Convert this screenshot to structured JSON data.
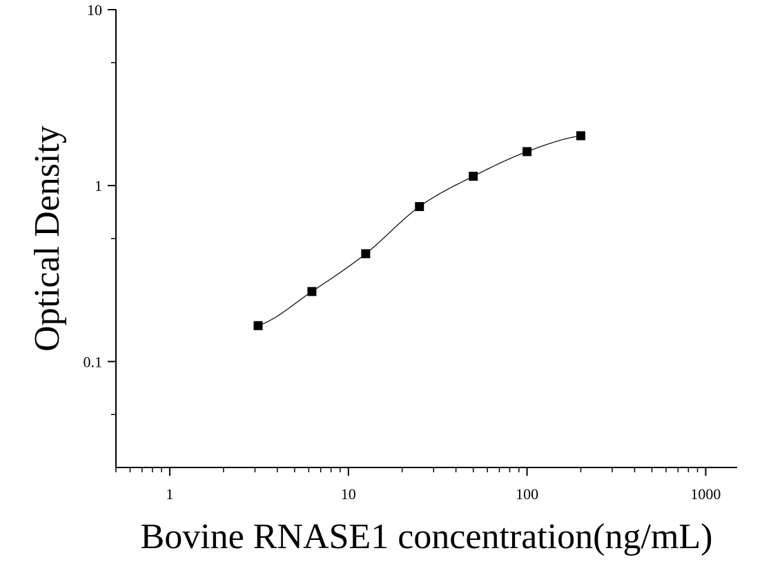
{
  "chart_data": {
    "type": "scatter",
    "title": "",
    "xlabel": "Bovine RNASE1 concentration(ng/mL)",
    "ylabel": "Optical Density",
    "x_scale": "log",
    "y_scale": "log",
    "xlim": [
      0.5,
      1500
    ],
    "ylim": [
      0.025,
      10
    ],
    "x_ticks": [
      {
        "value": 1,
        "label": "1"
      },
      {
        "value": 10,
        "label": "10"
      },
      {
        "value": 100,
        "label": "100"
      },
      {
        "value": 1000,
        "label": "1000"
      }
    ],
    "y_ticks": [
      {
        "value": 0.1,
        "label": "0.1"
      },
      {
        "value": 1,
        "label": "1"
      },
      {
        "value": 10,
        "label": "10"
      }
    ],
    "grid": false,
    "series": [
      {
        "marker": "square",
        "color": "#000000",
        "x": [
          3.125,
          6.25,
          12.5,
          25,
          50,
          100,
          200
        ],
        "y": [
          0.16,
          0.25,
          0.41,
          0.76,
          1.13,
          1.56,
          1.92
        ],
        "fit_curve": true
      }
    ]
  }
}
